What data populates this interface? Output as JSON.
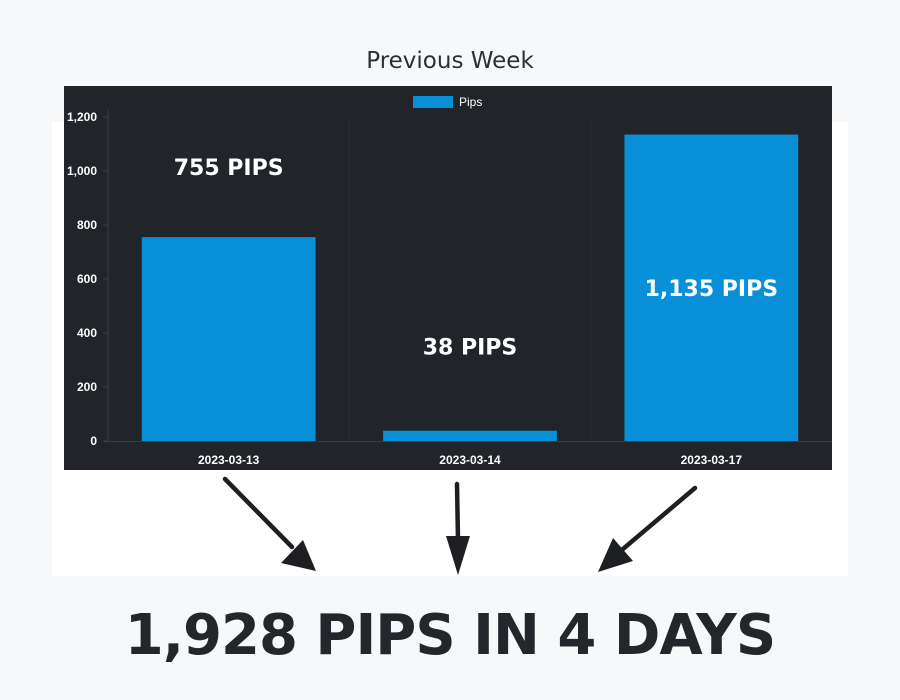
{
  "page": {
    "title": "Previous Week",
    "headline": "1,928 PIPS IN 4 DAYS"
  },
  "colors": {
    "bar": "#0790d8",
    "chart_bg": "#212428",
    "text": "#ffffff",
    "headline": "#24262b"
  },
  "chart_data": {
    "type": "bar",
    "categories": [
      "2023-03-13",
      "2023-03-14",
      "2023-03-17"
    ],
    "series": [
      {
        "name": "Pips",
        "values": [
          755,
          38,
          1135
        ]
      }
    ],
    "data_labels": [
      "755 PIPS",
      "38 PIPS",
      "1,135 PIPS"
    ],
    "ylim": [
      0,
      1200
    ],
    "yticks": [
      0,
      200,
      400,
      600,
      800,
      1000,
      1200
    ],
    "ytick_labels": [
      "0",
      "200",
      "400",
      "600",
      "800",
      "1,000",
      "1,200"
    ],
    "legend": "top-center",
    "grid": false
  },
  "arrows": {
    "count": 3,
    "icon": "arrow-icon"
  }
}
